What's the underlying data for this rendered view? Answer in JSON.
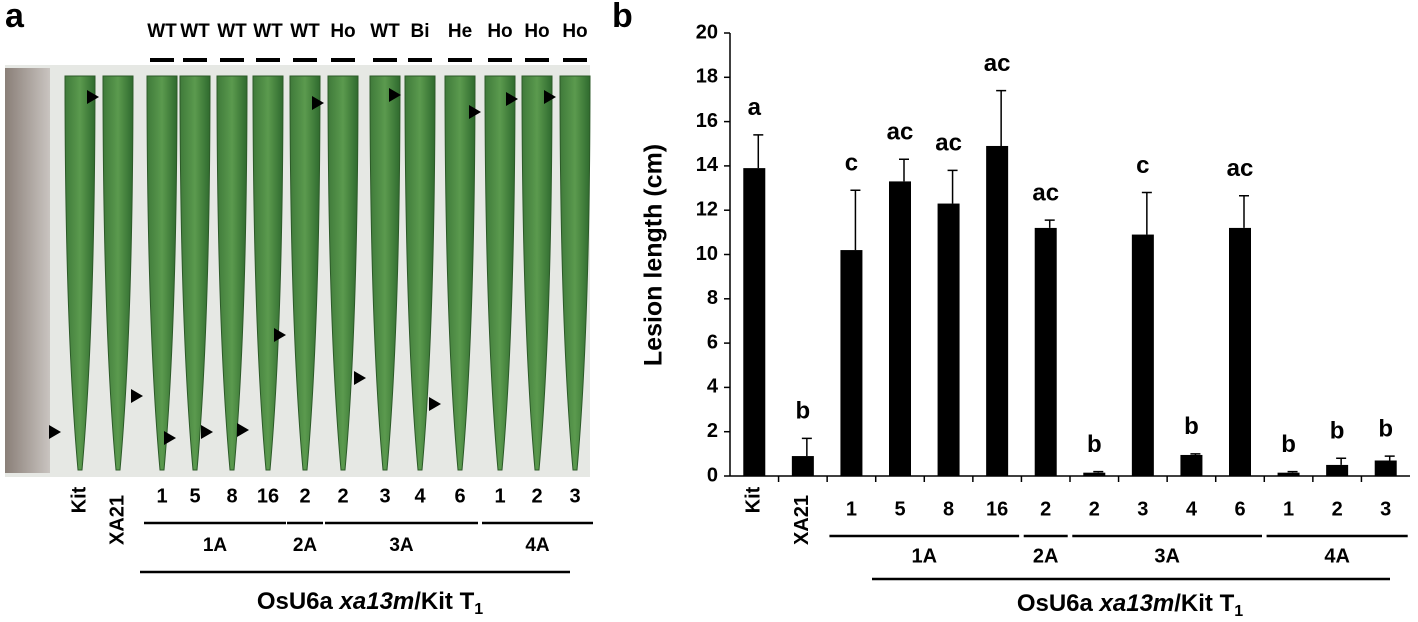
{
  "panel_a": {
    "label": "a",
    "genotypes": [
      "WT",
      "WT",
      "WT",
      "WT",
      "WT",
      "Ho",
      "WT",
      "Bi",
      "He",
      "Ho",
      "Ho",
      "Ho"
    ],
    "lines": [
      "Kit",
      "XA21",
      "1",
      "5",
      "8",
      "16",
      "2",
      "2",
      "3",
      "4",
      "6",
      "1",
      "2",
      "3"
    ],
    "groups": [
      "1A",
      "2A",
      "3A",
      "4A"
    ],
    "footer": [
      "OsU6a ",
      "xa13m",
      "/Kit T",
      "1"
    ]
  },
  "chart_data": {
    "type": "bar",
    "label": "b",
    "y_label": "Lesion length (cm)",
    "categories": [
      "Kit",
      "XA21",
      "1",
      "5",
      "8",
      "16",
      "2",
      "2",
      "3",
      "4",
      "6",
      "1",
      "2",
      "3"
    ],
    "values": [
      13.9,
      0.9,
      10.2,
      13.3,
      12.3,
      14.9,
      11.2,
      0.15,
      10.9,
      0.95,
      11.2,
      0.15,
      0.5,
      0.7
    ],
    "errors": [
      1.5,
      0.8,
      2.7,
      1.0,
      1.5,
      2.5,
      0.35,
      0.05,
      1.9,
      0.05,
      1.45,
      0.05,
      0.3,
      0.2
    ],
    "letters": [
      "a",
      "b",
      "c",
      "ac",
      "ac",
      "ac",
      "ac",
      "b",
      "c",
      "b",
      "ac",
      "b",
      "b",
      "b"
    ],
    "groups": [
      "1A",
      "2A",
      "3A",
      "4A"
    ],
    "footer": [
      "OsU6a ",
      "xa13m",
      "/Kit T",
      "1"
    ],
    "color": "#000000",
    "ylim": [
      0,
      20
    ],
    "yticks": [
      0,
      2,
      4,
      6,
      8,
      10,
      12,
      14,
      16,
      18,
      20
    ]
  }
}
